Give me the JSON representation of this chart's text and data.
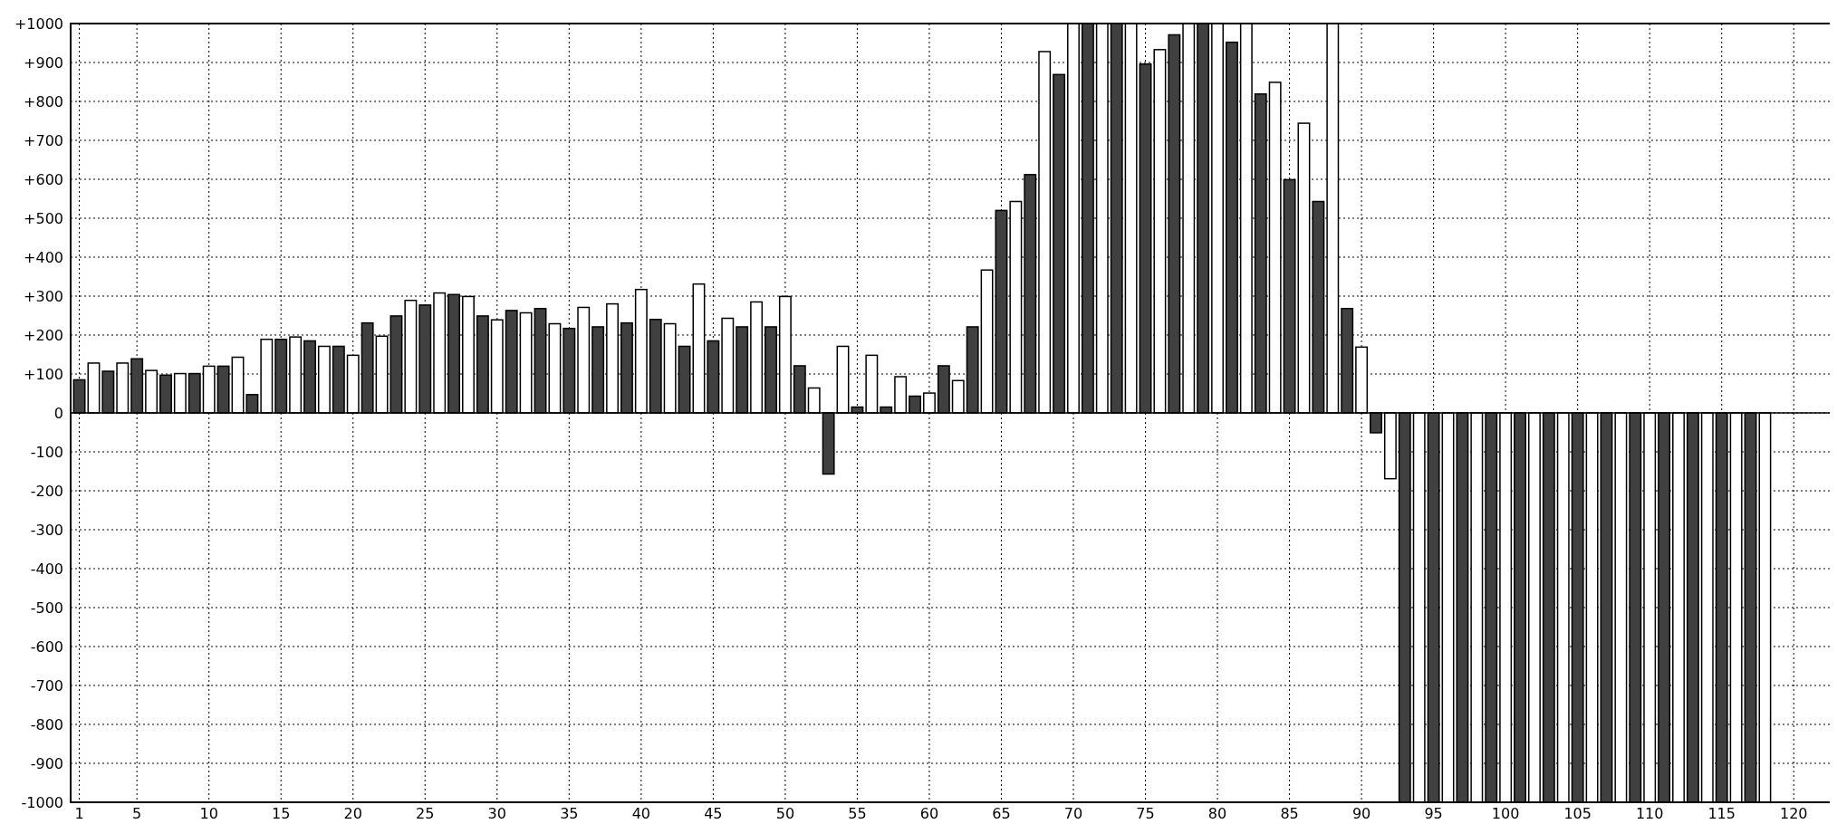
{
  "chart_data": {
    "type": "bar",
    "xlim": [
      0.4,
      122.5
    ],
    "xticks": [
      1,
      5,
      10,
      15,
      20,
      25,
      30,
      35,
      40,
      45,
      50,
      55,
      60,
      65,
      70,
      75,
      80,
      85,
      90,
      95,
      100,
      105,
      110,
      115,
      120
    ],
    "ylim": [
      -1000,
      1000
    ],
    "yticks": [
      -1000,
      -900,
      -800,
      -700,
      -600,
      -500,
      -400,
      -300,
      -200,
      -100,
      0,
      {
        "value": 100,
        "label": "+100"
      },
      {
        "value": 200,
        "label": "+200"
      },
      {
        "value": 300,
        "label": "+300"
      },
      {
        "value": 400,
        "label": "+400"
      },
      {
        "value": 500,
        "label": "+500"
      },
      {
        "value": 600,
        "label": "+600"
      },
      {
        "value": 700,
        "label": "+700"
      },
      {
        "value": 800,
        "label": "+800"
      },
      {
        "value": 900,
        "label": "+900"
      },
      {
        "value": 1000,
        "label": "+1000"
      }
    ],
    "grid": true,
    "series": [
      {
        "color": "#404040",
        "x": [
          1,
          3,
          5,
          7,
          9,
          11,
          13,
          15,
          17,
          19,
          21,
          23,
          25,
          27,
          29,
          31,
          33,
          35,
          37,
          39,
          41,
          43,
          45,
          47,
          49,
          51,
          53,
          55,
          57,
          59,
          61,
          63,
          65,
          67,
          69,
          71,
          73,
          75,
          77,
          79,
          81,
          83,
          85,
          87,
          89,
          91,
          93,
          95,
          97,
          99,
          101,
          103,
          105,
          107,
          109,
          111,
          113,
          115,
          117
        ],
        "values": [
          85,
          107,
          139,
          97,
          101,
          120,
          47,
          189,
          185,
          171,
          231,
          249,
          277,
          304,
          249,
          263,
          268,
          217,
          221,
          231,
          240,
          171,
          185,
          221,
          221,
          121,
          -157,
          15,
          15,
          43,
          121,
          221,
          520,
          612,
          869,
          1000,
          1000,
          896,
          971,
          1000,
          952,
          819,
          599,
          543,
          268,
          -51,
          -1000,
          -1000,
          -1000,
          -1000,
          -1000,
          -1000,
          -1000,
          -1000,
          -1000,
          -1000,
          -1000,
          -1000,
          -1000
        ]
      },
      {
        "color": "#ffffff",
        "x": [
          2,
          4,
          6,
          8,
          10,
          12,
          14,
          16,
          18,
          20,
          22,
          24,
          26,
          28,
          30,
          32,
          34,
          36,
          38,
          40,
          42,
          44,
          46,
          48,
          50,
          52,
          54,
          56,
          58,
          60,
          62,
          64,
          66,
          68,
          70,
          72,
          74,
          76,
          78,
          80,
          82,
          84,
          86,
          88,
          90,
          92,
          94,
          96,
          98,
          100,
          102,
          104,
          106,
          108,
          110,
          112,
          114,
          116,
          118
        ],
        "values": [
          128,
          128,
          109,
          101,
          120,
          143,
          189,
          195,
          171,
          148,
          197,
          289,
          308,
          299,
          239,
          257,
          229,
          271,
          280,
          317,
          229,
          331,
          243,
          285,
          299,
          64,
          171,
          148,
          93,
          51,
          83,
          367,
          543,
          928,
          1000,
          1000,
          1000,
          933,
          1000,
          1000,
          1000,
          849,
          744,
          1000,
          169,
          -169,
          -1000,
          -1000,
          -1000,
          -1000,
          -1000,
          -1000,
          -1000,
          -1000,
          -1000,
          -1000,
          -1000,
          -1000,
          -1000
        ]
      }
    ]
  }
}
